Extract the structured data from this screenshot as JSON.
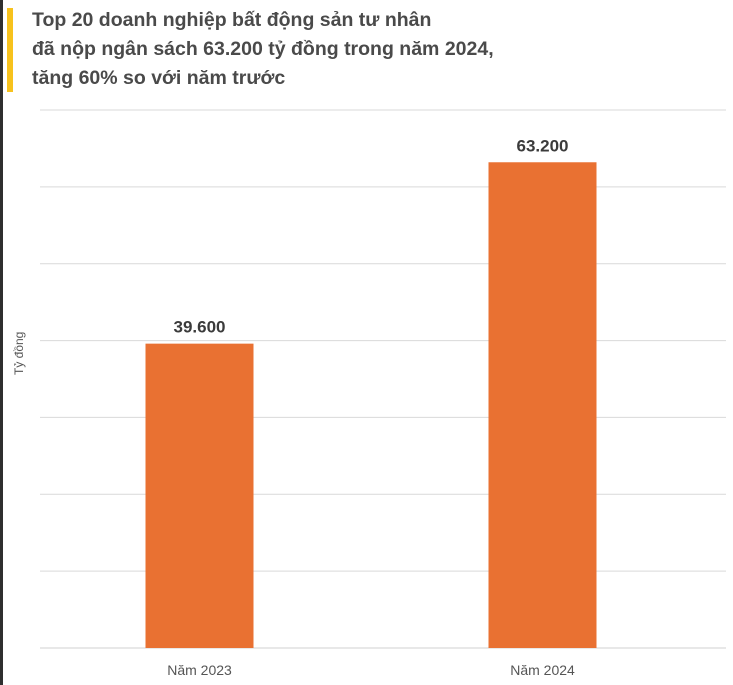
{
  "colors": {
    "bar": "#e97132",
    "accent": "#f7c21d",
    "title": "#4a4a4a",
    "grid": "#d9d9d9"
  },
  "chart_data": {
    "type": "bar",
    "title": [
      "Top 20 doanh nghiệp bất động sản tư nhân",
      "đã nộp ngân sách 63.200 tỷ  đồng trong năm 2024,",
      "tăng 60% so với năm trước"
    ],
    "ylabel": "Tỷ đồng",
    "xlabel": "",
    "categories": [
      "Năm 2023",
      "Năm 2024"
    ],
    "values": [
      39600,
      63200
    ],
    "value_labels": [
      "39.600",
      "63.200"
    ],
    "ylim": [
      0,
      70000
    ],
    "grid": true,
    "legend": "none"
  }
}
